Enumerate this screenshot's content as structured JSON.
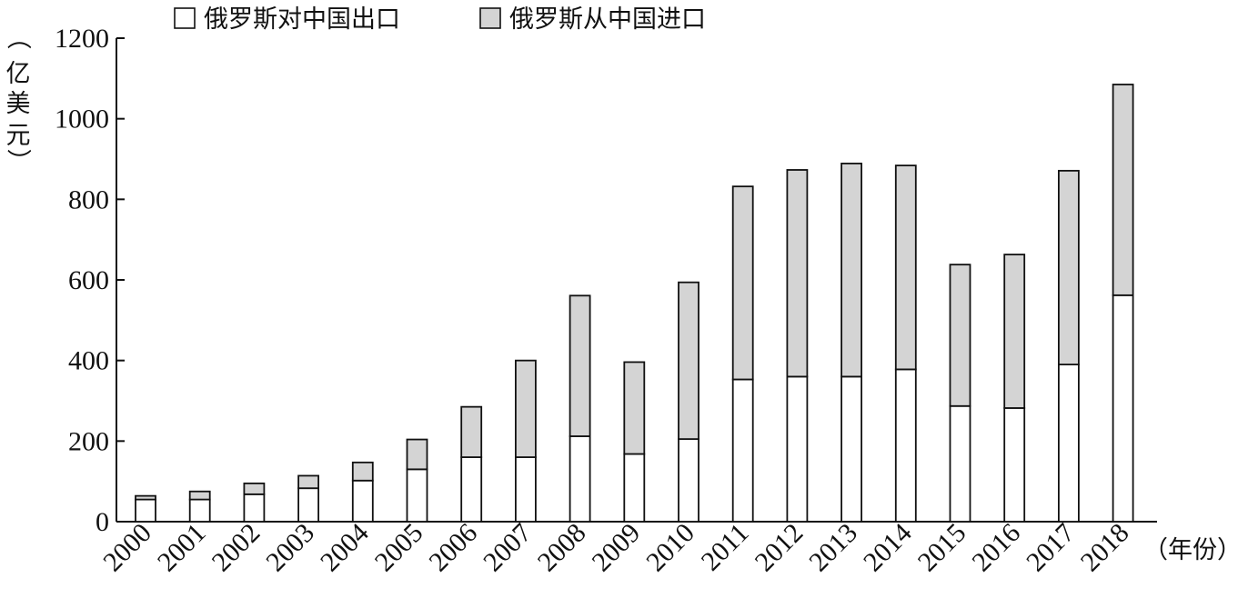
{
  "chart_data": {
    "type": "bar",
    "stacked": true,
    "title": "",
    "y_unit": "（亿美元）",
    "x_unit": "（年份）",
    "ylim": [
      0,
      1200
    ],
    "yticks": [
      0,
      200,
      400,
      600,
      800,
      1000,
      1200
    ],
    "grid": false,
    "legend_position": "top",
    "categories": [
      "2000",
      "2001",
      "2002",
      "2003",
      "2004",
      "2005",
      "2006",
      "2007",
      "2008",
      "2009",
      "2010",
      "2011",
      "2012",
      "2013",
      "2014",
      "2015",
      "2016",
      "2017",
      "2018"
    ],
    "series": [
      {
        "name": "俄罗斯对中国出口",
        "color": "#ffffff",
        "values": [
          55,
          55,
          68,
          83,
          102,
          130,
          160,
          160,
          212,
          168,
          205,
          353,
          360,
          360,
          378,
          287,
          282,
          390,
          562
        ]
      },
      {
        "name": "俄罗斯从中国进口",
        "color": "#d4d4d4",
        "values": [
          9,
          20,
          27,
          31,
          45,
          74,
          125,
          240,
          349,
          228,
          389,
          479,
          513,
          529,
          506,
          351,
          381,
          481,
          523
        ]
      }
    ]
  }
}
